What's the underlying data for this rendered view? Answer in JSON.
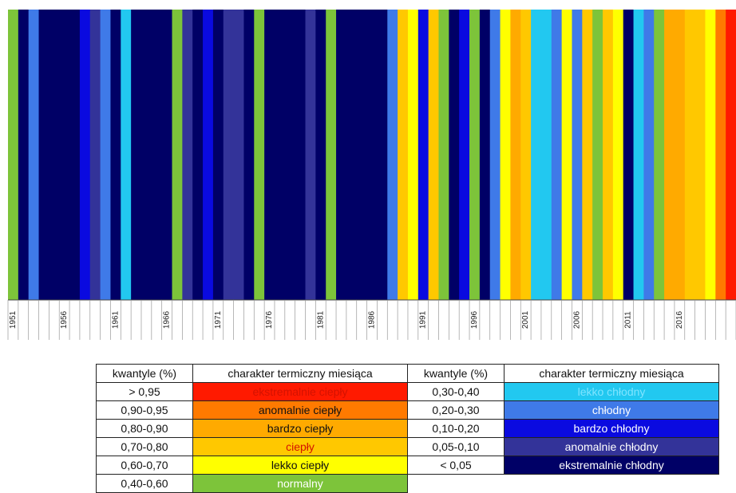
{
  "chart_data": {
    "type": "bar",
    "title": "",
    "xlabel": "",
    "ylabel": "",
    "start_year": 1951,
    "end_year": 2021,
    "tick_labels": [
      "1951",
      "1956",
      "1961",
      "1966",
      "1971",
      "1976",
      "1981",
      "1986",
      "1991",
      "1996",
      "2001",
      "2006",
      "2011",
      "2016"
    ],
    "classes_by_year": [
      "normalny",
      "ekstremalnie chłodny",
      "chłodny",
      "ekstremalnie chłodny",
      "ekstremalnie chłodny",
      "ekstremalnie chłodny",
      "ekstremalnie chłodny",
      "bardzo chłodny",
      "anomalnie chłodny",
      "chłodny",
      "ekstremalnie chłodny",
      "lekko chłodny",
      "ekstremalnie chłodny",
      "ekstremalnie chłodny",
      "ekstremalnie chłodny",
      "ekstremalnie chłodny",
      "normalny",
      "anomalnie chłodny",
      "ekstremalnie chłodny",
      "bardzo chłodny",
      "ekstremalnie chłodny",
      "anomalnie chłodny",
      "anomalnie chłodny",
      "ekstremalnie chłodny",
      "normalny",
      "ekstremalnie chłodny",
      "ekstremalnie chłodny",
      "ekstremalnie chłodny",
      "ekstremalnie chłodny",
      "anomalnie chłodny",
      "ekstremalnie chłodny",
      "normalny",
      "ekstremalnie chłodny",
      "ekstremalnie chłodny",
      "ekstremalnie chłodny",
      "ekstremalnie chłodny",
      "ekstremalnie chłodny",
      "chłodny",
      "ciepły",
      "lekko ciepły",
      "bardzo chłodny",
      "ciepły",
      "normalny",
      "ekstremalnie chłodny",
      "bardzo chłodny",
      "normalny",
      "ekstremalnie chłodny",
      "chłodny",
      "lekko ciepły",
      "bardzo ciepły",
      "ciepły",
      "lekko chłodny",
      "lekko chłodny",
      "chłodny",
      "lekko ciepły",
      "chłodny",
      "ciepły",
      "normalny",
      "ciepły",
      "lekko ciepły",
      "ekstremalnie chłodny",
      "lekko chłodny",
      "chłodny",
      "normalny",
      "bardzo ciepły",
      "bardzo ciepły",
      "ciepły",
      "ciepły",
      "lekko ciepły",
      "anomalnie ciepły",
      "ekstremalnie ciepły"
    ],
    "legend": {
      "header_quantiles": "kwantyle (%)",
      "header_character": "charakter termiczny miesiąca",
      "classes": [
        {
          "quantiles": "> 0,95",
          "label": "ekstremalnie ciepły",
          "color": "#ff1a00",
          "text_color": "#d41200"
        },
        {
          "quantiles": "0,90-0,95",
          "label": "anomalnie ciepły",
          "color": "#ff7a00",
          "text_color": "#111111"
        },
        {
          "quantiles": "0,80-0,90",
          "label": "bardzo ciepły",
          "color": "#ffaa00",
          "text_color": "#111111"
        },
        {
          "quantiles": "0,70-0,80",
          "label": "ciepły",
          "color": "#ffc800",
          "text_color": "#d41200"
        },
        {
          "quantiles": "0,60-0,70",
          "label": "lekko ciepły",
          "color": "#ffff00",
          "text_color": "#111111"
        },
        {
          "quantiles": "0,40-0,60",
          "label": "normalny",
          "color": "#7dc43a",
          "text_color": "#ffffff"
        },
        {
          "quantiles": "0,30-0,40",
          "label": "lekko chłodny",
          "color": "#22c8f0",
          "text_color": "#7fe4ff"
        },
        {
          "quantiles": "0,20-0,30",
          "label": "chłodny",
          "color": "#3f7ae8",
          "text_color": "#ffffff"
        },
        {
          "quantiles": "0,10-0,20",
          "label": "bardzo chłodny",
          "color": "#0a0ae0",
          "text_color": "#ffffff"
        },
        {
          "quantiles": "0,05-0,10",
          "label": "anomalnie chłodny",
          "color": "#333399",
          "text_color": "#ffffff"
        },
        {
          "quantiles": "< 0,05",
          "label": "ekstremalnie chłodny",
          "color": "#000066",
          "text_color": "#ffffff"
        }
      ]
    },
    "grid": false
  }
}
